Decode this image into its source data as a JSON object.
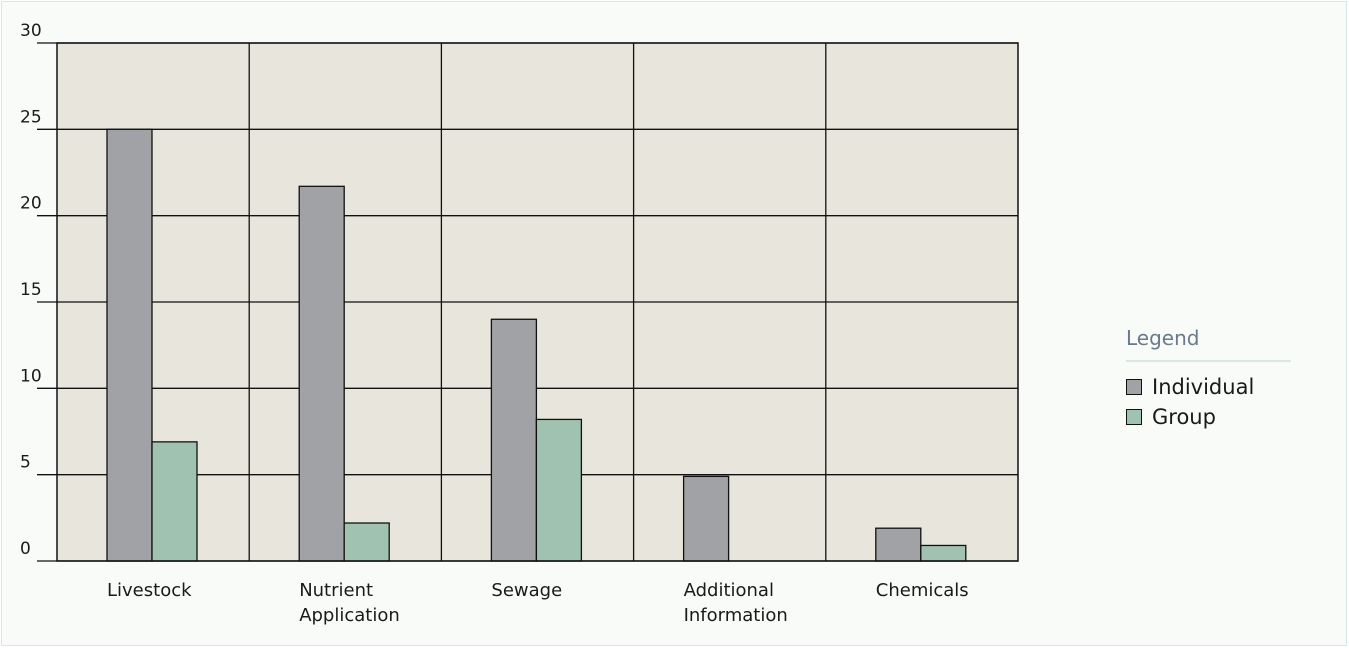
{
  "chart_data": {
    "type": "bar",
    "categories": [
      "Livestock",
      "Nutrient Application",
      "Sewage",
      "Additional Information",
      "Chemicals"
    ],
    "category_lines": [
      [
        "Livestock"
      ],
      [
        "Nutrient",
        "Application"
      ],
      [
        "Sewage"
      ],
      [
        "Additional",
        "Information"
      ],
      [
        "Chemicals"
      ]
    ],
    "series": [
      {
        "name": "Individual",
        "color": "#a0a2a6",
        "values": [
          25,
          21.7,
          14,
          4.9,
          1.9
        ]
      },
      {
        "name": "Group",
        "color": "#9fc2b1",
        "values": [
          6.9,
          2.2,
          8.2,
          0,
          0.9
        ]
      }
    ],
    "yticks": [
      0,
      5,
      10,
      15,
      20,
      25,
      30
    ],
    "ylim": [
      0,
      30
    ],
    "grid": true,
    "plot_background": "#e8e6dc",
    "legend": {
      "title": "Legend",
      "placement": "right"
    }
  }
}
